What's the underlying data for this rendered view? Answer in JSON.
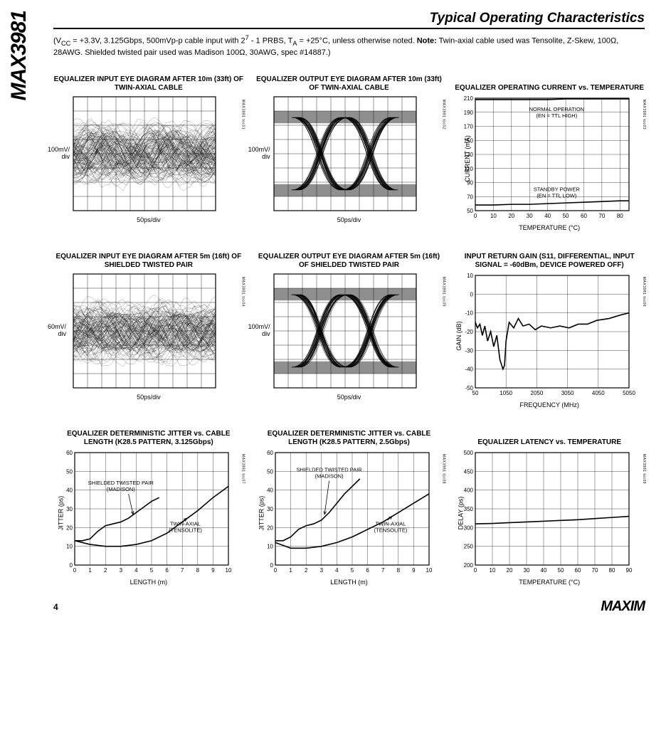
{
  "partNumber": "MAX3981",
  "sectionTitle": "Typical Operating Characteristics",
  "conditions": "(V_CC = +3.3V, 3.125Gbps, 500mVp-p cable input with 2^7 - 1 PRBS, T_A = +25°C, unless otherwise noted. Note: Twin-axial cable used was Tensolite, Z-Skew, 100Ω, 28AWG. Shielded twisted pair used was Madison 100Ω, 30AWG, spec #14887.)",
  "pageNum": "4",
  "logo": "MAXIM",
  "charts": [
    {
      "id": "toc01",
      "type": "eye-diagram",
      "title": "EQUALIZER INPUT EYE DIAGRAM AFTER 10m (33ft) OF TWIN-AXIAL CABLE",
      "ylabel": "100mV/\ndiv",
      "xlabel": "50ps/div",
      "tocLabel": "MAX3981 toc01",
      "eyeStyle": "closed-noisy",
      "gridCols": 10,
      "gridRows": 8
    },
    {
      "id": "toc02",
      "type": "eye-diagram",
      "title": "EQUALIZER OUTPUT EYE DIAGRAM AFTER 10m (33ft) OF TWIN-AXIAL CABLE",
      "ylabel": "100mV/\ndiv",
      "xlabel": "50ps/div",
      "tocLabel": "MAX3981 toc02",
      "eyeStyle": "open-clean",
      "gridCols": 10,
      "gridRows": 8
    },
    {
      "id": "toc03",
      "type": "line-chart",
      "title": "EQUALIZER OPERATING CURRENT vs. TEMPERATURE",
      "ylabel": "CURRENT (mA)",
      "xlabel": "TEMPERATURE (°C)",
      "tocLabel": "MAX3981 toc03",
      "xlim": [
        0,
        85
      ],
      "xtick_step": 10,
      "xtick_minor": 5,
      "ylim": [
        50,
        210
      ],
      "ytick_step": 20,
      "series": [
        {
          "label": "NORMAL OPERATION (EN = TTL HIGH)",
          "labelPos": [
            45,
            192
          ],
          "points": [
            [
              0,
              208
            ],
            [
              10,
              208
            ],
            [
              20,
              208
            ],
            [
              30,
              208
            ],
            [
              40,
              208
            ],
            [
              50,
              209
            ],
            [
              60,
              209
            ],
            [
              70,
              209
            ],
            [
              80,
              209
            ],
            [
              85,
              209
            ]
          ]
        },
        {
          "label": "STANDBY POWER (EN = TTL LOW)",
          "labelPos": [
            45,
            78
          ],
          "points": [
            [
              0,
              58
            ],
            [
              10,
              58
            ],
            [
              20,
              59
            ],
            [
              30,
              59
            ],
            [
              40,
              60
            ],
            [
              50,
              61
            ],
            [
              60,
              62
            ],
            [
              70,
              63
            ],
            [
              80,
              64
            ],
            [
              85,
              64
            ]
          ]
        }
      ],
      "stroke": "#000000",
      "grid_color": "#000000"
    },
    {
      "id": "toc04",
      "type": "eye-diagram",
      "title": "EQUALIZER INPUT EYE DIAGRAM AFTER 5m (16ft) OF SHIELDED TWISTED PAIR",
      "ylabel": "60mV/\ndiv",
      "xlabel": "50ps/div",
      "tocLabel": "MAX3981 toc04",
      "eyeStyle": "closed-noisy",
      "gridCols": 10,
      "gridRows": 8
    },
    {
      "id": "toc05",
      "type": "eye-diagram",
      "title": "EQUALIZER OUTPUT EYE DIAGRAM AFTER 5m (16ft) OF SHIELDED TWISTED PAIR",
      "ylabel": "100mV/\ndiv",
      "xlabel": "50ps/div",
      "tocLabel": "MAX3981 toc05",
      "eyeStyle": "open-clean",
      "gridCols": 10,
      "gridRows": 8
    },
    {
      "id": "toc06",
      "type": "line-chart",
      "title": "INPUT RETURN GAIN (S11, DIFFERENTIAL, INPUT SIGNAL = -60dBm, DEVICE POWERED OFF)",
      "ylabel": "GAIN (dB)",
      "xlabel": "FREQUENCY (MHz)",
      "tocLabel": "MAX3981 toc06",
      "xlim": [
        50,
        5050
      ],
      "xtick_labels": [
        50,
        1050,
        2050,
        3050,
        4050,
        5050
      ],
      "ylim": [
        -50,
        10
      ],
      "ytick_step": 10,
      "series": [
        {
          "label": "",
          "labelPos": null,
          "points": [
            [
              50,
              -15
            ],
            [
              120,
              -18
            ],
            [
              200,
              -16
            ],
            [
              280,
              -22
            ],
            [
              360,
              -17
            ],
            [
              450,
              -25
            ],
            [
              550,
              -20
            ],
            [
              650,
              -28
            ],
            [
              750,
              -22
            ],
            [
              850,
              -35
            ],
            [
              950,
              -40
            ],
            [
              1000,
              -38
            ],
            [
              1050,
              -25
            ],
            [
              1150,
              -15
            ],
            [
              1300,
              -18
            ],
            [
              1450,
              -13
            ],
            [
              1600,
              -17
            ],
            [
              1800,
              -16
            ],
            [
              2000,
              -19
            ],
            [
              2200,
              -17
            ],
            [
              2500,
              -18
            ],
            [
              2800,
              -17
            ],
            [
              3100,
              -18
            ],
            [
              3400,
              -16
            ],
            [
              3700,
              -16
            ],
            [
              4000,
              -14
            ],
            [
              4400,
              -13
            ],
            [
              4800,
              -11
            ],
            [
              5050,
              -10
            ]
          ]
        }
      ],
      "stroke": "#000000",
      "grid_color": "#000000"
    },
    {
      "id": "toc07",
      "type": "line-chart",
      "title": "EQUALIZER DETERMINISTIC JITTER vs. CABLE LENGTH (K28.5 PATTERN, 3.125Gbps)",
      "ylabel": "JITTER (ps)",
      "xlabel": "LENGTH (m)",
      "tocLabel": "MAX3981 toc07",
      "xlim": [
        0,
        10
      ],
      "xtick_step": 1,
      "ylim": [
        0,
        60
      ],
      "ytick_step": 10,
      "series": [
        {
          "label": "SHIELDED TWISTED PAIR (MADISON)",
          "labelPos": [
            3,
            43
          ],
          "points": [
            [
              0,
              13
            ],
            [
              0.5,
              13
            ],
            [
              1,
              14
            ],
            [
              1.5,
              18
            ],
            [
              2,
              21
            ],
            [
              2.5,
              22
            ],
            [
              3,
              23
            ],
            [
              3.5,
              25
            ],
            [
              4,
              28
            ],
            [
              4.5,
              31
            ],
            [
              5,
              34
            ],
            [
              5.5,
              36
            ]
          ]
        },
        {
          "label": "TWIN-AXIAL (TENSOLITE)",
          "labelPos": [
            7.2,
            21
          ],
          "points": [
            [
              0,
              13
            ],
            [
              1,
              11
            ],
            [
              2,
              10
            ],
            [
              3,
              10
            ],
            [
              4,
              11
            ],
            [
              5,
              13
            ],
            [
              6,
              17
            ],
            [
              7,
              23
            ],
            [
              8,
              29
            ],
            [
              9,
              36
            ],
            [
              10,
              42
            ]
          ]
        }
      ],
      "arrows": [
        {
          "from": [
            3.5,
            38
          ],
          "to": [
            3.8,
            27
          ]
        },
        {
          "from": [
            7,
            23
          ],
          "to": [
            7.3,
            25
          ]
        }
      ],
      "stroke": "#000000",
      "grid_color": "#000000"
    },
    {
      "id": "toc08",
      "type": "line-chart",
      "title": "EQUALIZER DETERMINISTIC JITTER vs. CABLE LENGTH (K28.5 PATTERN, 2.5Gbps)",
      "ylabel": "JITTER (ps)",
      "xlabel": "LENGTH (m)",
      "tocLabel": "MAX3981 toc08",
      "xlim": [
        0,
        10
      ],
      "xtick_step": 1,
      "ylim": [
        0,
        60
      ],
      "ytick_step": 10,
      "series": [
        {
          "label": "SHIELDED TWISTED PAIR (MADISON)",
          "labelPos": [
            3.5,
            50
          ],
          "points": [
            [
              0,
              13
            ],
            [
              0.5,
              13
            ],
            [
              1,
              15
            ],
            [
              1.5,
              19
            ],
            [
              2,
              21
            ],
            [
              2.5,
              22
            ],
            [
              3,
              24
            ],
            [
              3.5,
              28
            ],
            [
              4,
              33
            ],
            [
              4.5,
              38
            ],
            [
              5,
              42
            ],
            [
              5.5,
              46
            ]
          ]
        },
        {
          "label": "TWIN-AXIAL (TENSOLITE)",
          "labelPos": [
            7.5,
            21
          ],
          "points": [
            [
              0,
              12
            ],
            [
              1,
              9
            ],
            [
              2,
              9
            ],
            [
              3,
              10
            ],
            [
              4,
              12
            ],
            [
              5,
              15
            ],
            [
              6,
              19
            ],
            [
              7,
              23
            ],
            [
              8,
              28
            ],
            [
              9,
              33
            ],
            [
              10,
              38
            ]
          ]
        }
      ],
      "arrows": [
        {
          "from": [
            3.5,
            45
          ],
          "to": [
            3.2,
            27
          ]
        },
        {
          "from": [
            7.3,
            24
          ],
          "to": [
            7.6,
            26
          ]
        }
      ],
      "stroke": "#000000",
      "grid_color": "#000000"
    },
    {
      "id": "toc09",
      "type": "line-chart",
      "title": "EQUALIZER LATENCY vs. TEMPERATURE",
      "ylabel": "DELAY (ps)",
      "xlabel": "TEMPERATURE (°C)",
      "tocLabel": "MAX3981 toc09",
      "xlim": [
        0,
        90
      ],
      "xtick_step": 10,
      "ylim": [
        200,
        500
      ],
      "ytick_step": 50,
      "series": [
        {
          "label": "",
          "labelPos": null,
          "points": [
            [
              0,
              310
            ],
            [
              10,
              311
            ],
            [
              20,
              313
            ],
            [
              30,
              315
            ],
            [
              40,
              317
            ],
            [
              50,
              319
            ],
            [
              60,
              321
            ],
            [
              70,
              324
            ],
            [
              80,
              327
            ],
            [
              90,
              330
            ]
          ]
        }
      ],
      "stroke": "#000000",
      "grid_color": "#000000"
    }
  ]
}
